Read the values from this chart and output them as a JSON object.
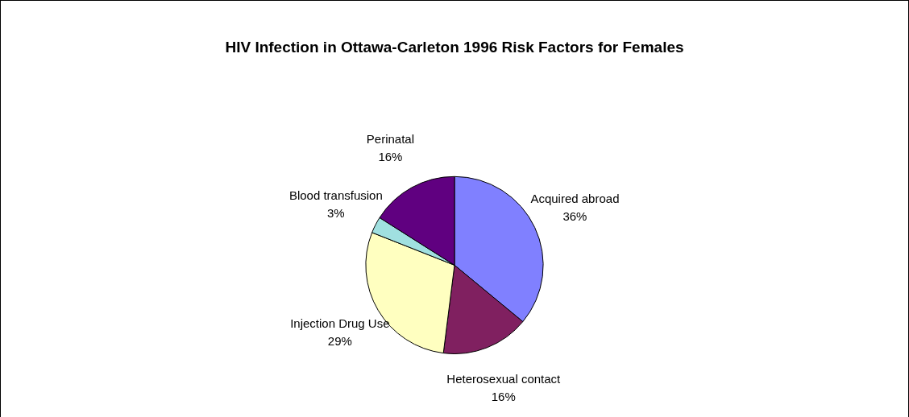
{
  "chart_data": {
    "type": "pie",
    "title": "HIV Infection in Ottawa-Carleton 1996 Risk Factors for Females",
    "categories": [
      "Acquired abroad",
      "Heterosexual contact",
      "Injection Drug Use",
      "Blood transfusion",
      "Perinatal"
    ],
    "values": [
      36,
      16,
      29,
      3,
      16
    ],
    "colors": [
      "#8080ff",
      "#802060",
      "#ffffc0",
      "#a0e0e0",
      "#600080"
    ],
    "value_labels": [
      "36%",
      "16%",
      "29%",
      "3%",
      "16%"
    ],
    "legend": false
  }
}
